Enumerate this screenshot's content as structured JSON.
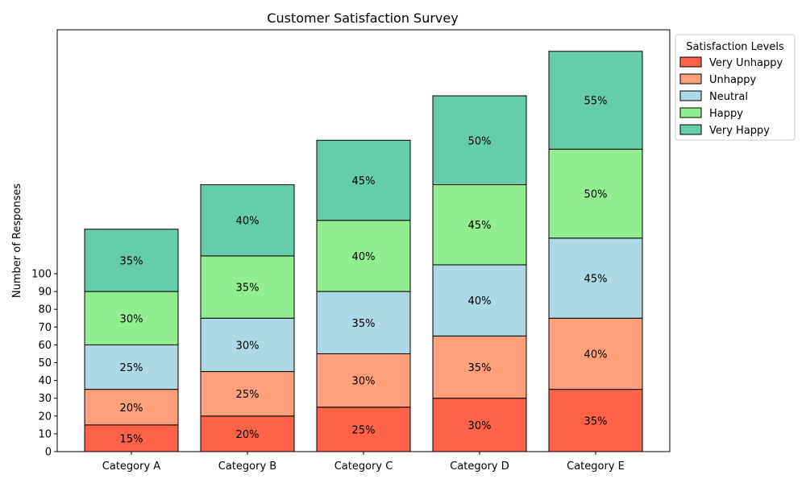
{
  "chart_data": {
    "type": "bar",
    "stacked": true,
    "title": "Customer Satisfaction Survey",
    "xlabel": "",
    "ylabel": "Number of Responses",
    "categories": [
      "Category A",
      "Category B",
      "Category C",
      "Category D",
      "Category E"
    ],
    "y_ticks": [
      0,
      10,
      20,
      30,
      40,
      50,
      60,
      70,
      80,
      90,
      100
    ],
    "legend": {
      "title": "Satisfaction Levels",
      "placement": "outside-top-right"
    },
    "series": [
      {
        "name": "Very Unhappy",
        "color": "#ff6347",
        "values": [
          15,
          20,
          25,
          30,
          35
        ],
        "labels": [
          "15%",
          "20%",
          "25%",
          "30%",
          "35%"
        ]
      },
      {
        "name": "Unhappy",
        "color": "#ffa07a",
        "values": [
          20,
          25,
          30,
          35,
          40
        ],
        "labels": [
          "20%",
          "25%",
          "30%",
          "35%",
          "40%"
        ]
      },
      {
        "name": "Neutral",
        "color": "#add8e6",
        "values": [
          25,
          30,
          35,
          40,
          45
        ],
        "labels": [
          "25%",
          "30%",
          "35%",
          "40%",
          "45%"
        ]
      },
      {
        "name": "Happy",
        "color": "#90ee90",
        "values": [
          30,
          35,
          40,
          45,
          50
        ],
        "labels": [
          "30%",
          "35%",
          "40%",
          "45%",
          "50%"
        ]
      },
      {
        "name": "Very Happy",
        "color": "#66cdaa",
        "values": [
          35,
          40,
          45,
          50,
          55
        ],
        "labels": [
          "35%",
          "40%",
          "45%",
          "50%",
          "55%"
        ]
      }
    ]
  }
}
